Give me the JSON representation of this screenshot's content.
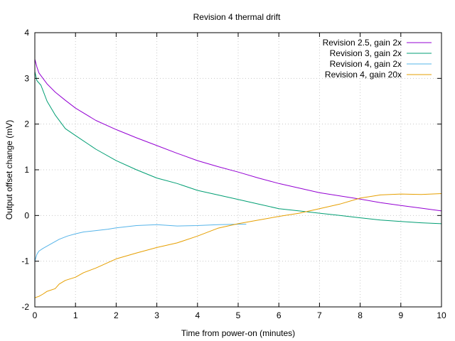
{
  "chart_data": {
    "type": "line",
    "title": "Revision 4 thermal drift",
    "xlabel": "Time from power-on (minutes)",
    "ylabel": "Output offset change (mV)",
    "xlim": [
      0,
      10
    ],
    "ylim": [
      -2,
      4
    ],
    "xticks": [
      "0",
      "1",
      "2",
      "3",
      "4",
      "5",
      "6",
      "7",
      "8",
      "9",
      "10"
    ],
    "yticks": [
      "-2",
      "-1",
      "0",
      "1",
      "2",
      "3",
      "4"
    ],
    "grid": true,
    "legend_position": "top-right",
    "series": [
      {
        "name": "Revision 2.5, gain 2x",
        "color": "#9400d3",
        "points": [
          [
            0,
            3.42
          ],
          [
            0.05,
            3.25
          ],
          [
            0.1,
            3.12
          ],
          [
            0.2,
            3.0
          ],
          [
            0.3,
            2.88
          ],
          [
            0.5,
            2.7
          ],
          [
            0.75,
            2.52
          ],
          [
            1,
            2.35
          ],
          [
            1.5,
            2.08
          ],
          [
            2,
            1.88
          ],
          [
            2.5,
            1.7
          ],
          [
            3,
            1.53
          ],
          [
            3.5,
            1.36
          ],
          [
            4,
            1.2
          ],
          [
            4.5,
            1.07
          ],
          [
            5,
            0.95
          ],
          [
            5.5,
            0.82
          ],
          [
            6,
            0.7
          ],
          [
            6.5,
            0.6
          ],
          [
            7,
            0.5
          ],
          [
            7.5,
            0.43
          ],
          [
            8,
            0.36
          ],
          [
            8.5,
            0.28
          ],
          [
            9,
            0.22
          ],
          [
            9.5,
            0.16
          ],
          [
            10,
            0.1
          ]
        ]
      },
      {
        "name": "Revision 3, gain 2x",
        "color": "#009e73",
        "points": [
          [
            0,
            3.15
          ],
          [
            0.05,
            2.95
          ],
          [
            0.15,
            2.85
          ],
          [
            0.3,
            2.5
          ],
          [
            0.5,
            2.2
          ],
          [
            0.75,
            1.9
          ],
          [
            1,
            1.75
          ],
          [
            1.5,
            1.45
          ],
          [
            2,
            1.2
          ],
          [
            2.5,
            1.0
          ],
          [
            3,
            0.82
          ],
          [
            3.5,
            0.7
          ],
          [
            4,
            0.55
          ],
          [
            4.5,
            0.45
          ],
          [
            5,
            0.35
          ],
          [
            5.5,
            0.25
          ],
          [
            6,
            0.15
          ],
          [
            6.5,
            0.1
          ],
          [
            7,
            0.05
          ],
          [
            7.5,
            0.0
          ],
          [
            8,
            -0.05
          ],
          [
            8.5,
            -0.1
          ],
          [
            9,
            -0.13
          ],
          [
            9.5,
            -0.16
          ],
          [
            10,
            -0.18
          ]
        ]
      },
      {
        "name": "Revision 4, gain 2x",
        "color": "#56b4e9",
        "points": [
          [
            0,
            -1.0
          ],
          [
            0.05,
            -0.85
          ],
          [
            0.1,
            -0.78
          ],
          [
            0.2,
            -0.72
          ],
          [
            0.4,
            -0.62
          ],
          [
            0.6,
            -0.52
          ],
          [
            0.8,
            -0.45
          ],
          [
            1,
            -0.4
          ],
          [
            1.2,
            -0.36
          ],
          [
            1.5,
            -0.33
          ],
          [
            1.8,
            -0.3
          ],
          [
            2,
            -0.27
          ],
          [
            2.5,
            -0.22
          ],
          [
            3,
            -0.2
          ],
          [
            3.5,
            -0.23
          ],
          [
            4,
            -0.22
          ],
          [
            4.5,
            -0.2
          ],
          [
            5,
            -0.19
          ],
          [
            5.2,
            -0.19
          ]
        ]
      },
      {
        "name": "Revision 4, gain 20x",
        "color": "#e69f00",
        "points": [
          [
            0,
            -1.8
          ],
          [
            0.1,
            -1.77
          ],
          [
            0.2,
            -1.72
          ],
          [
            0.3,
            -1.66
          ],
          [
            0.5,
            -1.6
          ],
          [
            0.6,
            -1.5
          ],
          [
            0.75,
            -1.42
          ],
          [
            1,
            -1.35
          ],
          [
            1.2,
            -1.25
          ],
          [
            1.5,
            -1.15
          ],
          [
            2,
            -0.95
          ],
          [
            2.5,
            -0.82
          ],
          [
            3,
            -0.7
          ],
          [
            3.5,
            -0.6
          ],
          [
            4,
            -0.45
          ],
          [
            4.5,
            -0.28
          ],
          [
            5,
            -0.18
          ],
          [
            5.5,
            -0.1
          ],
          [
            6,
            -0.02
          ],
          [
            6.5,
            0.05
          ],
          [
            7,
            0.15
          ],
          [
            7.5,
            0.25
          ],
          [
            8,
            0.38
          ],
          [
            8.5,
            0.45
          ],
          [
            9,
            0.47
          ],
          [
            9.5,
            0.46
          ],
          [
            10,
            0.48
          ]
        ]
      }
    ]
  }
}
